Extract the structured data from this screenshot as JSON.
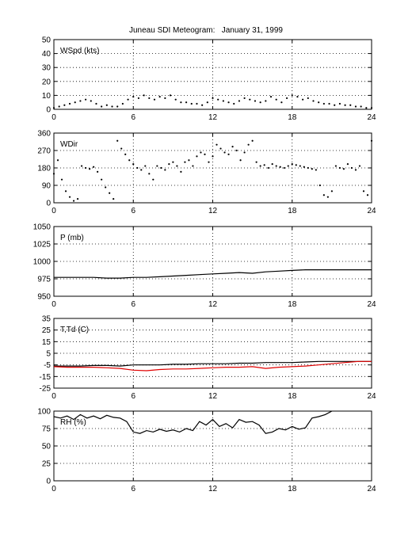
{
  "title": "Juneau SDI Meteogram:   January 31, 1999",
  "chart_data": [
    {
      "id": "wspd",
      "type": "scatter",
      "ylabel": "WSpd (kts)",
      "xlim": [
        0,
        24
      ],
      "ylim": [
        0,
        50
      ],
      "xticks": [
        0,
        6,
        12,
        18,
        24
      ],
      "yticks": [
        0,
        10,
        20,
        30,
        40,
        50
      ],
      "grid": true,
      "series": [
        {
          "color": "#000000",
          "x": [
            0,
            0.4,
            0.8,
            1.2,
            1.6,
            2.0,
            2.4,
            2.8,
            3.2,
            3.6,
            4.0,
            4.4,
            4.8,
            5.2,
            5.6,
            6.0,
            6.4,
            6.8,
            7.2,
            7.6,
            8.0,
            8.4,
            8.8,
            9.2,
            9.6,
            10.0,
            10.4,
            10.8,
            11.2,
            11.6,
            12.0,
            12.4,
            12.8,
            13.2,
            13.6,
            14.0,
            14.4,
            14.8,
            15.2,
            15.6,
            16.0,
            16.4,
            16.8,
            17.2,
            17.6,
            18.0,
            18.4,
            18.8,
            19.2,
            19.6,
            20.0,
            20.4,
            20.8,
            21.2,
            21.6,
            22.0,
            22.4,
            22.8,
            23.2,
            23.6,
            24.0
          ],
          "y": [
            1,
            2,
            3,
            4,
            5,
            6,
            7,
            6,
            4,
            2,
            3,
            2,
            2,
            4,
            7,
            9,
            8,
            10,
            8,
            7,
            9,
            8,
            10,
            7,
            5,
            5,
            4,
            4,
            3,
            5,
            8,
            7,
            6,
            5,
            4,
            6,
            8,
            7,
            6,
            5,
            6,
            9,
            7,
            5,
            8,
            10,
            9,
            7,
            8,
            6,
            5,
            4,
            4,
            3,
            4,
            3,
            3,
            2,
            2,
            1,
            1
          ]
        }
      ]
    },
    {
      "id": "wdir",
      "type": "scatter",
      "ylabel": "WDir",
      "xlim": [
        0,
        24
      ],
      "ylim": [
        0,
        360
      ],
      "xticks": [
        0,
        6,
        12,
        18,
        24
      ],
      "yticks": [
        0,
        90,
        180,
        270,
        360
      ],
      "grid": true,
      "series": [
        {
          "color": "#000000",
          "x": [
            0,
            0.3,
            0.6,
            0.9,
            1.2,
            1.5,
            1.8,
            2.1,
            2.4,
            2.7,
            3.0,
            3.3,
            3.6,
            3.9,
            4.2,
            4.5,
            4.8,
            5.1,
            5.4,
            5.7,
            6.0,
            6.3,
            6.6,
            6.9,
            7.2,
            7.5,
            7.8,
            8.1,
            8.4,
            8.7,
            9.0,
            9.3,
            9.6,
            9.9,
            10.2,
            10.5,
            10.8,
            11.1,
            11.4,
            11.7,
            12.0,
            12.3,
            12.6,
            12.9,
            13.2,
            13.5,
            13.8,
            14.1,
            14.4,
            14.7,
            15.0,
            15.3,
            15.6,
            15.9,
            16.2,
            16.5,
            16.8,
            17.1,
            17.4,
            17.7,
            18.0,
            18.3,
            18.6,
            18.9,
            19.2,
            19.5,
            19.8,
            20.1,
            20.4,
            20.7,
            21.0,
            21.3,
            21.6,
            21.9,
            22.2,
            22.5,
            22.8,
            23.1,
            23.4,
            23.7,
            24.0
          ],
          "y": [
            150,
            220,
            120,
            60,
            30,
            10,
            20,
            190,
            180,
            175,
            185,
            160,
            120,
            80,
            50,
            20,
            320,
            280,
            250,
            220,
            200,
            180,
            170,
            190,
            150,
            120,
            190,
            180,
            170,
            200,
            210,
            190,
            160,
            210,
            220,
            190,
            240,
            260,
            250,
            210,
            240,
            300,
            280,
            260,
            250,
            290,
            270,
            220,
            260,
            300,
            320,
            210,
            190,
            195,
            180,
            200,
            190,
            185,
            180,
            190,
            200,
            195,
            190,
            185,
            180,
            175,
            170,
            90,
            40,
            30,
            60,
            190,
            180,
            175,
            200,
            180,
            170,
            190,
            60,
            40,
            320
          ]
        }
      ]
    },
    {
      "id": "pres",
      "type": "line",
      "ylabel": "P (mb)",
      "xlim": [
        0,
        24
      ],
      "ylim": [
        950,
        1050
      ],
      "xticks": [
        0,
        6,
        12,
        18,
        24
      ],
      "yticks": [
        950,
        975,
        1000,
        1025,
        1050
      ],
      "grid": true,
      "series": [
        {
          "color": "#000000",
          "x": [
            0,
            1,
            2,
            3,
            4,
            5,
            6,
            7,
            8,
            9,
            10,
            11,
            12,
            13,
            14,
            15,
            16,
            17,
            18,
            19,
            20,
            21,
            22,
            23,
            24
          ],
          "y": [
            977,
            977,
            977,
            977,
            976,
            976,
            977,
            977,
            978,
            979,
            980,
            981,
            982,
            983,
            984,
            983,
            985,
            986,
            987,
            988,
            988,
            988,
            988,
            988,
            988
          ]
        }
      ]
    },
    {
      "id": "temp",
      "type": "line",
      "ylabel": "T,Td (C)",
      "xlim": [
        0,
        24
      ],
      "ylim": [
        -25,
        35
      ],
      "xticks": [
        0,
        6,
        12,
        18,
        24
      ],
      "yticks": [
        -25,
        -15,
        -5,
        5,
        15,
        25,
        35
      ],
      "grid": true,
      "series": [
        {
          "color": "#000000",
          "x": [
            0,
            1,
            2,
            3,
            4,
            5,
            6,
            7,
            8,
            9,
            10,
            11,
            12,
            13,
            14,
            15,
            16,
            17,
            18,
            19,
            20,
            21,
            22,
            23,
            24
          ],
          "y": [
            -6,
            -6,
            -6,
            -5.5,
            -5.5,
            -6,
            -5,
            -5,
            -5,
            -4.5,
            -4.5,
            -4,
            -4,
            -4,
            -3.5,
            -3.5,
            -3,
            -3,
            -3,
            -2.5,
            -2,
            -2,
            -2,
            -2,
            -2
          ]
        },
        {
          "color": "#e00000",
          "x": [
            0,
            1,
            2,
            3,
            4,
            5,
            6,
            7,
            8,
            9,
            10,
            11,
            12,
            13,
            14,
            15,
            16,
            17,
            18,
            19,
            20,
            21,
            22,
            23,
            24
          ],
          "y": [
            -6.5,
            -7,
            -7,
            -7,
            -7.5,
            -8,
            -9.5,
            -10,
            -9,
            -8.5,
            -8.5,
            -8,
            -7.5,
            -7,
            -7,
            -6.5,
            -8,
            -7,
            -6.5,
            -6,
            -5,
            -4,
            -3,
            -2,
            -2
          ]
        }
      ]
    },
    {
      "id": "rh",
      "type": "line",
      "ylabel": "RH (%)",
      "xlim": [
        0,
        24
      ],
      "ylim": [
        0,
        100
      ],
      "xticks": [
        0,
        6,
        12,
        18,
        24
      ],
      "yticks": [
        0,
        25,
        50,
        75,
        100
      ],
      "grid": true,
      "series": [
        {
          "color": "#000000",
          "x": [
            0,
            0.5,
            1,
            1.5,
            2,
            2.5,
            3,
            3.5,
            4,
            4.5,
            5,
            5.5,
            6,
            6.5,
            7,
            7.5,
            8,
            8.5,
            9,
            9.5,
            10,
            10.5,
            11,
            11.5,
            12,
            12.5,
            13,
            13.5,
            14,
            14.5,
            15,
            15.5,
            16,
            16.5,
            17,
            17.5,
            18,
            18.5,
            19,
            19.5,
            20,
            20.5,
            21
          ],
          "y": [
            92,
            90,
            93,
            88,
            95,
            90,
            93,
            89,
            94,
            91,
            90,
            85,
            70,
            68,
            72,
            70,
            74,
            71,
            73,
            70,
            75,
            72,
            85,
            80,
            88,
            78,
            82,
            76,
            88,
            84,
            85,
            80,
            68,
            70,
            75,
            73,
            78,
            74,
            76,
            90,
            92,
            95,
            100
          ]
        }
      ]
    }
  ]
}
